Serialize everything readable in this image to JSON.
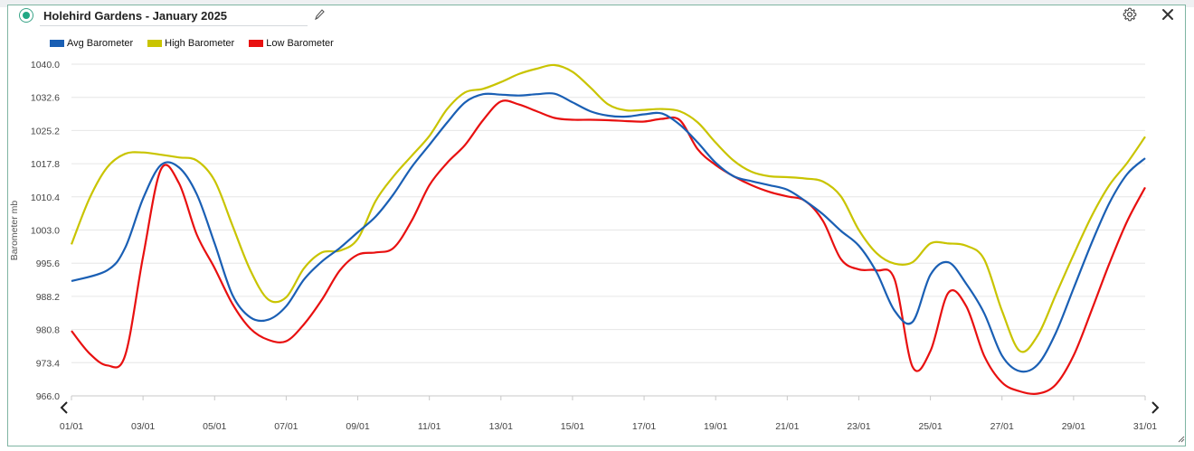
{
  "window": {
    "title": "Holehird Gardens - January 2025",
    "icons": [
      "status-dot-icon",
      "pencil-icon",
      "gear-icon",
      "close-icon",
      "chevron-left-icon",
      "chevron-right-icon",
      "resize-grip-icon"
    ]
  },
  "legend": [
    {
      "name": "Avg Barometer",
      "color": "#1a5fb4"
    },
    {
      "name": "High Barometer",
      "color": "#c9c400"
    },
    {
      "name": "Low Barometer",
      "color": "#e81010"
    }
  ],
  "chart_data": {
    "type": "line",
    "title": "",
    "xlabel": "",
    "ylabel": "Barometer mb",
    "ylim": [
      966.0,
      1040.0
    ],
    "yticks": [
      "1040.0",
      "1032.6",
      "1025.2",
      "1017.8",
      "1010.4",
      "1003.0",
      "995.6",
      "988.2",
      "980.8",
      "973.4",
      "966.0"
    ],
    "xlim": [
      1,
      31
    ],
    "xticks": [
      {
        "day": 1,
        "label": "01/01"
      },
      {
        "day": 3,
        "label": "03/01"
      },
      {
        "day": 5,
        "label": "05/01"
      },
      {
        "day": 7,
        "label": "07/01"
      },
      {
        "day": 9,
        "label": "09/01"
      },
      {
        "day": 11,
        "label": "11/01"
      },
      {
        "day": 13,
        "label": "13/01"
      },
      {
        "day": 15,
        "label": "15/01"
      },
      {
        "day": 17,
        "label": "17/01"
      },
      {
        "day": 19,
        "label": "19/01"
      },
      {
        "day": 21,
        "label": "21/01"
      },
      {
        "day": 23,
        "label": "23/01"
      },
      {
        "day": 25,
        "label": "25/01"
      },
      {
        "day": 27,
        "label": "27/01"
      },
      {
        "day": 29,
        "label": "29/01"
      },
      {
        "day": 31,
        "label": "31/01"
      }
    ],
    "grid": true,
    "legend_position": "top-left",
    "series": [
      {
        "name": "Avg Barometer",
        "color": "#1a5fb4",
        "points": [
          [
            1.0,
            991.6
          ],
          [
            2.0,
            994.0
          ],
          [
            2.5,
            999.0
          ],
          [
            3.0,
            1010.0
          ],
          [
            3.5,
            1017.5
          ],
          [
            4.0,
            1017.0
          ],
          [
            4.5,
            1011.0
          ],
          [
            5.0,
            1000.0
          ],
          [
            5.5,
            988.5
          ],
          [
            6.0,
            983.5
          ],
          [
            6.5,
            983.0
          ],
          [
            7.0,
            986.0
          ],
          [
            7.5,
            992.0
          ],
          [
            8.0,
            996.0
          ],
          [
            8.5,
            999.0
          ],
          [
            9.0,
            1002.5
          ],
          [
            9.5,
            1006.0
          ],
          [
            10.0,
            1011.0
          ],
          [
            10.5,
            1017.0
          ],
          [
            11.0,
            1022.0
          ],
          [
            11.5,
            1027.0
          ],
          [
            12.0,
            1031.5
          ],
          [
            12.5,
            1033.3
          ],
          [
            13.0,
            1033.2
          ],
          [
            13.5,
            1033.0
          ],
          [
            14.0,
            1033.3
          ],
          [
            14.5,
            1033.4
          ],
          [
            15.0,
            1031.5
          ],
          [
            15.5,
            1029.5
          ],
          [
            16.0,
            1028.5
          ],
          [
            16.5,
            1028.3
          ],
          [
            17.0,
            1028.8
          ],
          [
            17.5,
            1029.0
          ],
          [
            18.0,
            1026.5
          ],
          [
            18.5,
            1022.5
          ],
          [
            19.0,
            1018.0
          ],
          [
            19.5,
            1015.0
          ],
          [
            20.0,
            1013.9
          ],
          [
            20.5,
            1013.0
          ],
          [
            21.0,
            1012.0
          ],
          [
            21.5,
            1009.5
          ],
          [
            22.0,
            1006.5
          ],
          [
            22.5,
            1002.8
          ],
          [
            23.0,
            999.5
          ],
          [
            23.5,
            993.5
          ],
          [
            24.0,
            985.0
          ],
          [
            24.5,
            982.5
          ],
          [
            25.0,
            993.0
          ],
          [
            25.5,
            995.8
          ],
          [
            26.0,
            991.0
          ],
          [
            26.5,
            984.5
          ],
          [
            27.0,
            975.0
          ],
          [
            27.5,
            971.5
          ],
          [
            28.0,
            973.0
          ],
          [
            28.5,
            980.0
          ],
          [
            29.0,
            990.0
          ],
          [
            29.5,
            1000.0
          ],
          [
            30.0,
            1009.0
          ],
          [
            30.5,
            1015.5
          ],
          [
            31.0,
            1019.0
          ]
        ]
      },
      {
        "name": "High Barometer",
        "color": "#c9c400",
        "points": [
          [
            1.0,
            999.8
          ],
          [
            1.5,
            1010.0
          ],
          [
            2.0,
            1017.0
          ],
          [
            2.5,
            1020.0
          ],
          [
            3.0,
            1020.3
          ],
          [
            3.5,
            1019.8
          ],
          [
            4.0,
            1019.2
          ],
          [
            4.5,
            1018.5
          ],
          [
            5.0,
            1014.0
          ],
          [
            5.5,
            1004.0
          ],
          [
            6.0,
            994.0
          ],
          [
            6.5,
            987.5
          ],
          [
            7.0,
            988.0
          ],
          [
            7.5,
            994.5
          ],
          [
            8.0,
            998.0
          ],
          [
            8.5,
            998.4
          ],
          [
            9.0,
            1001.0
          ],
          [
            9.5,
            1009.5
          ],
          [
            10.0,
            1015.0
          ],
          [
            10.5,
            1019.5
          ],
          [
            11.0,
            1024.0
          ],
          [
            11.5,
            1030.0
          ],
          [
            12.0,
            1033.7
          ],
          [
            12.5,
            1034.5
          ],
          [
            13.0,
            1036.0
          ],
          [
            13.5,
            1037.8
          ],
          [
            14.0,
            1039.0
          ],
          [
            14.5,
            1039.8
          ],
          [
            15.0,
            1038.3
          ],
          [
            15.5,
            1034.8
          ],
          [
            16.0,
            1031.0
          ],
          [
            16.5,
            1029.7
          ],
          [
            17.0,
            1029.8
          ],
          [
            17.5,
            1030.0
          ],
          [
            18.0,
            1029.5
          ],
          [
            18.5,
            1027.0
          ],
          [
            19.0,
            1022.5
          ],
          [
            19.5,
            1018.5
          ],
          [
            20.0,
            1016.0
          ],
          [
            20.5,
            1015.0
          ],
          [
            21.0,
            1014.8
          ],
          [
            21.5,
            1014.5
          ],
          [
            22.0,
            1013.8
          ],
          [
            22.5,
            1010.5
          ],
          [
            23.0,
            1003.0
          ],
          [
            23.5,
            997.8
          ],
          [
            24.0,
            995.5
          ],
          [
            24.5,
            995.8
          ],
          [
            25.0,
            1000.0
          ],
          [
            25.5,
            1000.0
          ],
          [
            26.0,
            999.5
          ],
          [
            26.5,
            996.5
          ],
          [
            27.0,
            985.0
          ],
          [
            27.5,
            976.0
          ],
          [
            28.0,
            979.5
          ],
          [
            28.5,
            988.5
          ],
          [
            29.0,
            997.5
          ],
          [
            29.5,
            1006.0
          ],
          [
            30.0,
            1013.0
          ],
          [
            30.5,
            1018.0
          ],
          [
            31.0,
            1023.8
          ]
        ]
      },
      {
        "name": "Low Barometer",
        "color": "#e81010",
        "points": [
          [
            1.0,
            980.5
          ],
          [
            1.5,
            975.5
          ],
          [
            2.0,
            972.8
          ],
          [
            2.5,
            975.0
          ],
          [
            3.0,
            997.0
          ],
          [
            3.5,
            1016.5
          ],
          [
            4.0,
            1013.5
          ],
          [
            4.5,
            1002.0
          ],
          [
            5.0,
            994.5
          ],
          [
            5.5,
            986.5
          ],
          [
            6.0,
            981.0
          ],
          [
            6.5,
            978.5
          ],
          [
            7.0,
            978.2
          ],
          [
            7.5,
            982.0
          ],
          [
            8.0,
            987.5
          ],
          [
            8.5,
            994.0
          ],
          [
            9.0,
            997.5
          ],
          [
            9.5,
            998.0
          ],
          [
            10.0,
            999.0
          ],
          [
            10.5,
            1005.0
          ],
          [
            11.0,
            1013.0
          ],
          [
            11.5,
            1018.0
          ],
          [
            12.0,
            1022.0
          ],
          [
            12.5,
            1027.5
          ],
          [
            13.0,
            1031.7
          ],
          [
            13.5,
            1031.0
          ],
          [
            14.0,
            1029.5
          ],
          [
            14.5,
            1028.0
          ],
          [
            15.0,
            1027.6
          ],
          [
            15.5,
            1027.6
          ],
          [
            16.0,
            1027.5
          ],
          [
            16.5,
            1027.3
          ],
          [
            17.0,
            1027.2
          ],
          [
            17.5,
            1027.8
          ],
          [
            18.0,
            1027.5
          ],
          [
            18.5,
            1021.0
          ],
          [
            19.0,
            1017.5
          ],
          [
            19.5,
            1015.0
          ],
          [
            20.0,
            1013.0
          ],
          [
            20.5,
            1011.5
          ],
          [
            21.0,
            1010.5
          ],
          [
            21.5,
            1009.5
          ],
          [
            22.0,
            1005.0
          ],
          [
            22.5,
            996.5
          ],
          [
            23.0,
            994.2
          ],
          [
            23.5,
            994.0
          ],
          [
            24.0,
            992.0
          ],
          [
            24.5,
            972.5
          ],
          [
            25.0,
            976.0
          ],
          [
            25.5,
            989.0
          ],
          [
            26.0,
            986.0
          ],
          [
            26.5,
            975.0
          ],
          [
            27.0,
            969.0
          ],
          [
            27.5,
            967.0
          ],
          [
            28.0,
            966.5
          ],
          [
            28.5,
            968.5
          ],
          [
            29.0,
            975.0
          ],
          [
            29.5,
            985.0
          ],
          [
            30.0,
            995.5
          ],
          [
            30.5,
            1005.0
          ],
          [
            31.0,
            1012.5
          ]
        ]
      }
    ]
  }
}
